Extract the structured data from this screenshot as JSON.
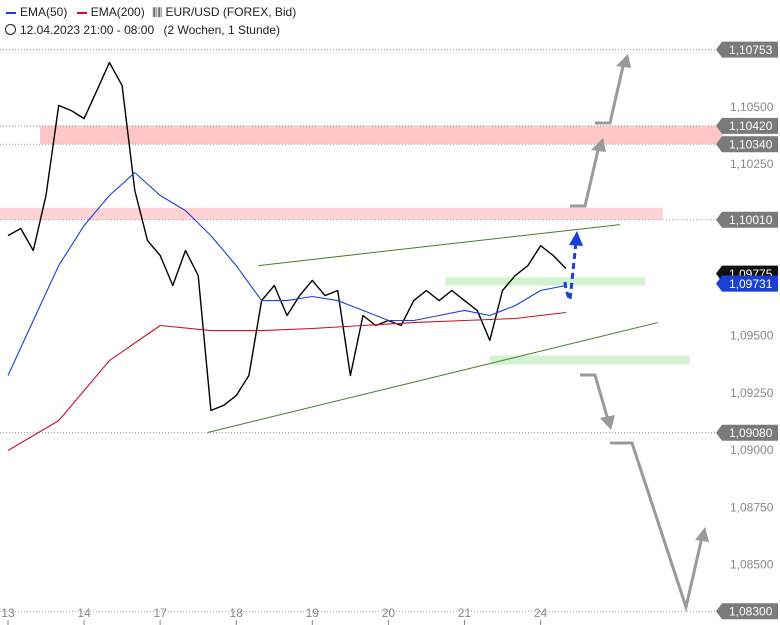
{
  "chart_data": {
    "type": "line",
    "subtitle": "12.04.2023 21:00 - 08:00",
    "period": "(2 Wochen, 1 Stunde)",
    "xlim": [
      -2.52,
      225.55
    ],
    "xticks": [
      {
        "value": 0,
        "label": "13"
      },
      {
        "value": 24,
        "label": "14"
      },
      {
        "value": 48,
        "label": "17"
      },
      {
        "value": 72,
        "label": "18"
      },
      {
        "value": 96,
        "label": "19"
      },
      {
        "value": 120,
        "label": "20"
      },
      {
        "value": 144,
        "label": "21"
      },
      {
        "value": 168,
        "label": "24"
      }
    ],
    "ylim": [
      1.0824,
      1.1097
    ],
    "yticks": [
      {
        "value": 1.105,
        "label": "1,10500"
      },
      {
        "value": 1.1025,
        "label": "1,10250"
      },
      {
        "value": 1.095,
        "label": "1,09500"
      },
      {
        "value": 1.0925,
        "label": "1,09250"
      },
      {
        "value": 1.09,
        "label": "1,09000"
      },
      {
        "value": 1.0875,
        "label": "1,08750"
      },
      {
        "value": 1.085,
        "label": "1,08500"
      }
    ],
    "levels": [
      {
        "value": 1.10753,
        "label": "1,10753"
      },
      {
        "value": 1.1042,
        "label": "1,10420"
      },
      {
        "value": 1.1034,
        "label": "1,10340"
      },
      {
        "value": 1.1001,
        "label": "1,10010"
      },
      {
        "value": 1.0908,
        "label": "1,09080"
      },
      {
        "value": 1.083,
        "label": "1,08300"
      }
    ],
    "markers": [
      {
        "value": 1.09775,
        "label": "1,09775",
        "color": "#111111"
      },
      {
        "value": 1.09731,
        "label": "1,09731",
        "color": "#1a3fd6"
      }
    ],
    "zones": [
      {
        "x": [
          10.1,
          225.55
        ],
        "y": [
          1.1034,
          1.1042
        ],
        "color": "#ffb3b3"
      },
      {
        "x": [
          -2.52,
          206.6
        ],
        "y": [
          1.1001,
          1.10062
        ],
        "color": "#ffc4c4"
      },
      {
        "x": [
          138,
          201
        ],
        "y": [
          1.09723,
          1.09758
        ],
        "color": "#c6ecc0"
      },
      {
        "x": [
          152,
          215
        ],
        "y": [
          1.09378,
          1.09417
        ],
        "color": "#c6ecc0"
      }
    ],
    "trendlines": [
      {
        "x": [
          79,
          193
        ],
        "y": [
          1.0981,
          1.09989
        ],
        "color": "#4a7a2a"
      },
      {
        "x": [
          63,
          205
        ],
        "y": [
          1.09081,
          1.09561
        ],
        "color": "#4a7a2a"
      }
    ],
    "series": [
      {
        "name": "EUR/USD (FOREX, Bid)",
        "color": "#000000",
        "x": [
          0,
          4,
          8,
          12,
          16,
          20,
          24,
          28,
          32,
          36,
          40,
          44,
          48,
          52,
          56,
          60,
          64,
          68,
          72,
          76,
          80,
          84,
          88,
          92,
          96,
          100,
          104,
          108,
          112,
          116,
          120,
          124,
          128,
          132,
          136,
          140,
          144,
          148,
          152,
          156,
          160,
          164,
          168,
          172,
          176
        ],
        "values": [
          1.09941,
          1.09972,
          1.09876,
          1.10116,
          1.10509,
          1.10487,
          1.10452,
          1.10574,
          1.10697,
          1.10596,
          1.10138,
          1.09919,
          1.09854,
          1.09723,
          1.09876,
          1.09766,
          1.09177,
          1.09199,
          1.09242,
          1.0933,
          1.09657,
          1.09723,
          1.09592,
          1.09679,
          1.09745,
          1.09679,
          1.09701,
          1.0933,
          1.09592,
          1.09548,
          1.0957,
          1.09548,
          1.09657,
          1.09701,
          1.09657,
          1.09701,
          1.09657,
          1.09614,
          1.09483,
          1.09701,
          1.09766,
          1.0981,
          1.09897,
          1.09854,
          1.09797
        ]
      },
      {
        "name": "EMA(50)",
        "color": "#1a3fd6",
        "x": [
          0,
          8,
          16,
          24,
          32,
          40,
          48,
          56,
          64,
          72,
          80,
          88,
          96,
          104,
          112,
          120,
          128,
          136,
          144,
          152,
          160,
          168,
          176
        ],
        "values": [
          1.0933,
          1.0957,
          1.0981,
          1.09985,
          1.10116,
          1.10216,
          1.10116,
          1.1005,
          1.09941,
          1.0981,
          1.09657,
          1.09657,
          1.09675,
          1.09657,
          1.09614,
          1.0957,
          1.0957,
          1.09592,
          1.09614,
          1.09592,
          1.09635,
          1.09701,
          1.09723
        ]
      },
      {
        "name": "EMA(200)",
        "color": "#c8102e",
        "x": [
          0,
          16,
          32,
          48,
          64,
          80,
          96,
          112,
          128,
          144,
          160,
          176
        ],
        "values": [
          1.09002,
          1.09133,
          1.09395,
          1.09548,
          1.09526,
          1.09526,
          1.09535,
          1.09548,
          1.09561,
          1.0957,
          1.09579,
          1.09605
        ]
      }
    ]
  }
}
